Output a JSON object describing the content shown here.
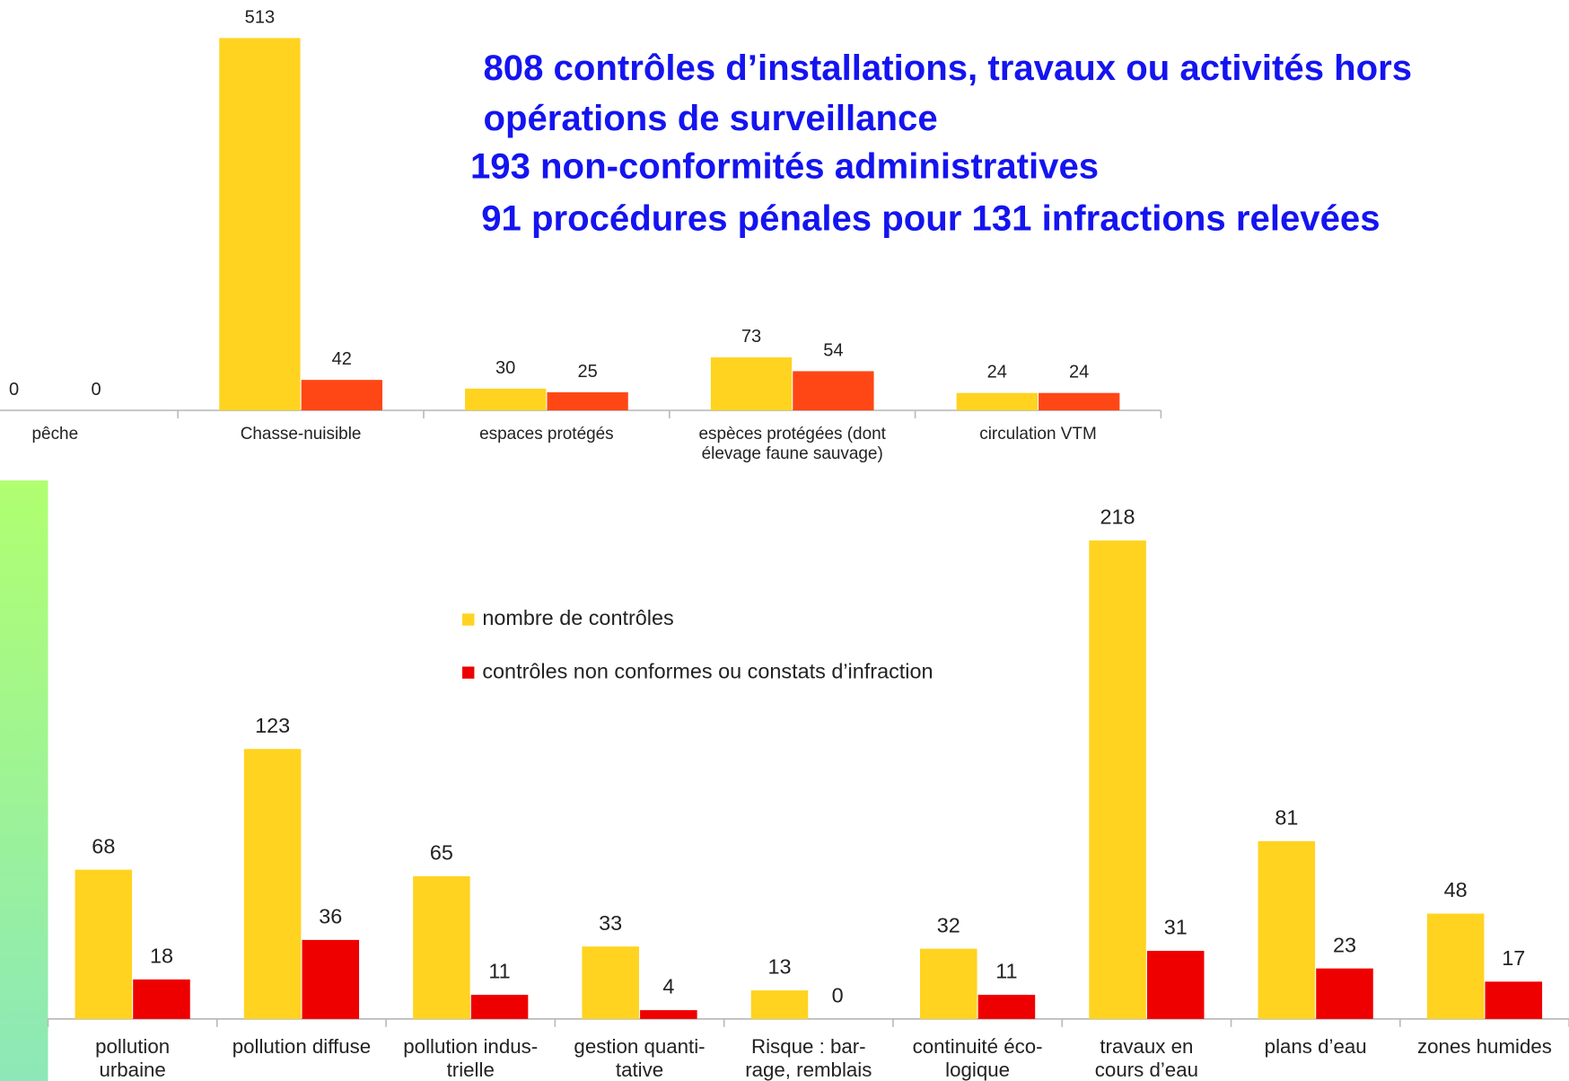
{
  "headline": [
    "808 contrôles d’installations, travaux ou activités hors",
    "opérations de surveillance",
    "193 non-conformités administratives",
    "91 procédures pénales pour 131 infractions relevées"
  ],
  "chart_data": [
    {
      "type": "bar",
      "categories": [
        "pêche",
        "Chasse-nuisible",
        "espaces protégés",
        "espèces protégées (dont\nélevage faune sauvage)",
        "circulation VTM"
      ],
      "series": [
        {
          "color": "#ffd320",
          "values": [
            0,
            513,
            30,
            73,
            24
          ]
        },
        {
          "color": "#ff4715",
          "values": [
            0,
            42,
            25,
            54,
            24
          ]
        }
      ],
      "ylim": [
        0,
        550
      ]
    },
    {
      "type": "bar",
      "categories": [
        "pollution\nurbaine",
        "pollution diffuse",
        "pollution indus-\ntrielle",
        "gestion quanti-\ntative",
        "Risque : bar-\nrage, remblais",
        "continuité éco-\nlogique",
        "travaux en\ncours d’eau",
        "plans d’eau",
        "zones humides"
      ],
      "series": [
        {
          "name": "nombre de contrôles",
          "color": "#ffd320",
          "values": [
            68,
            123,
            65,
            33,
            13,
            32,
            218,
            81,
            48
          ]
        },
        {
          "name": "contrôles non conformes ou constats d’infraction",
          "color": "#ee0000",
          "values": [
            18,
            36,
            11,
            4,
            0,
            11,
            31,
            23,
            17
          ]
        }
      ],
      "ylim": [
        0,
        230
      ]
    }
  ]
}
